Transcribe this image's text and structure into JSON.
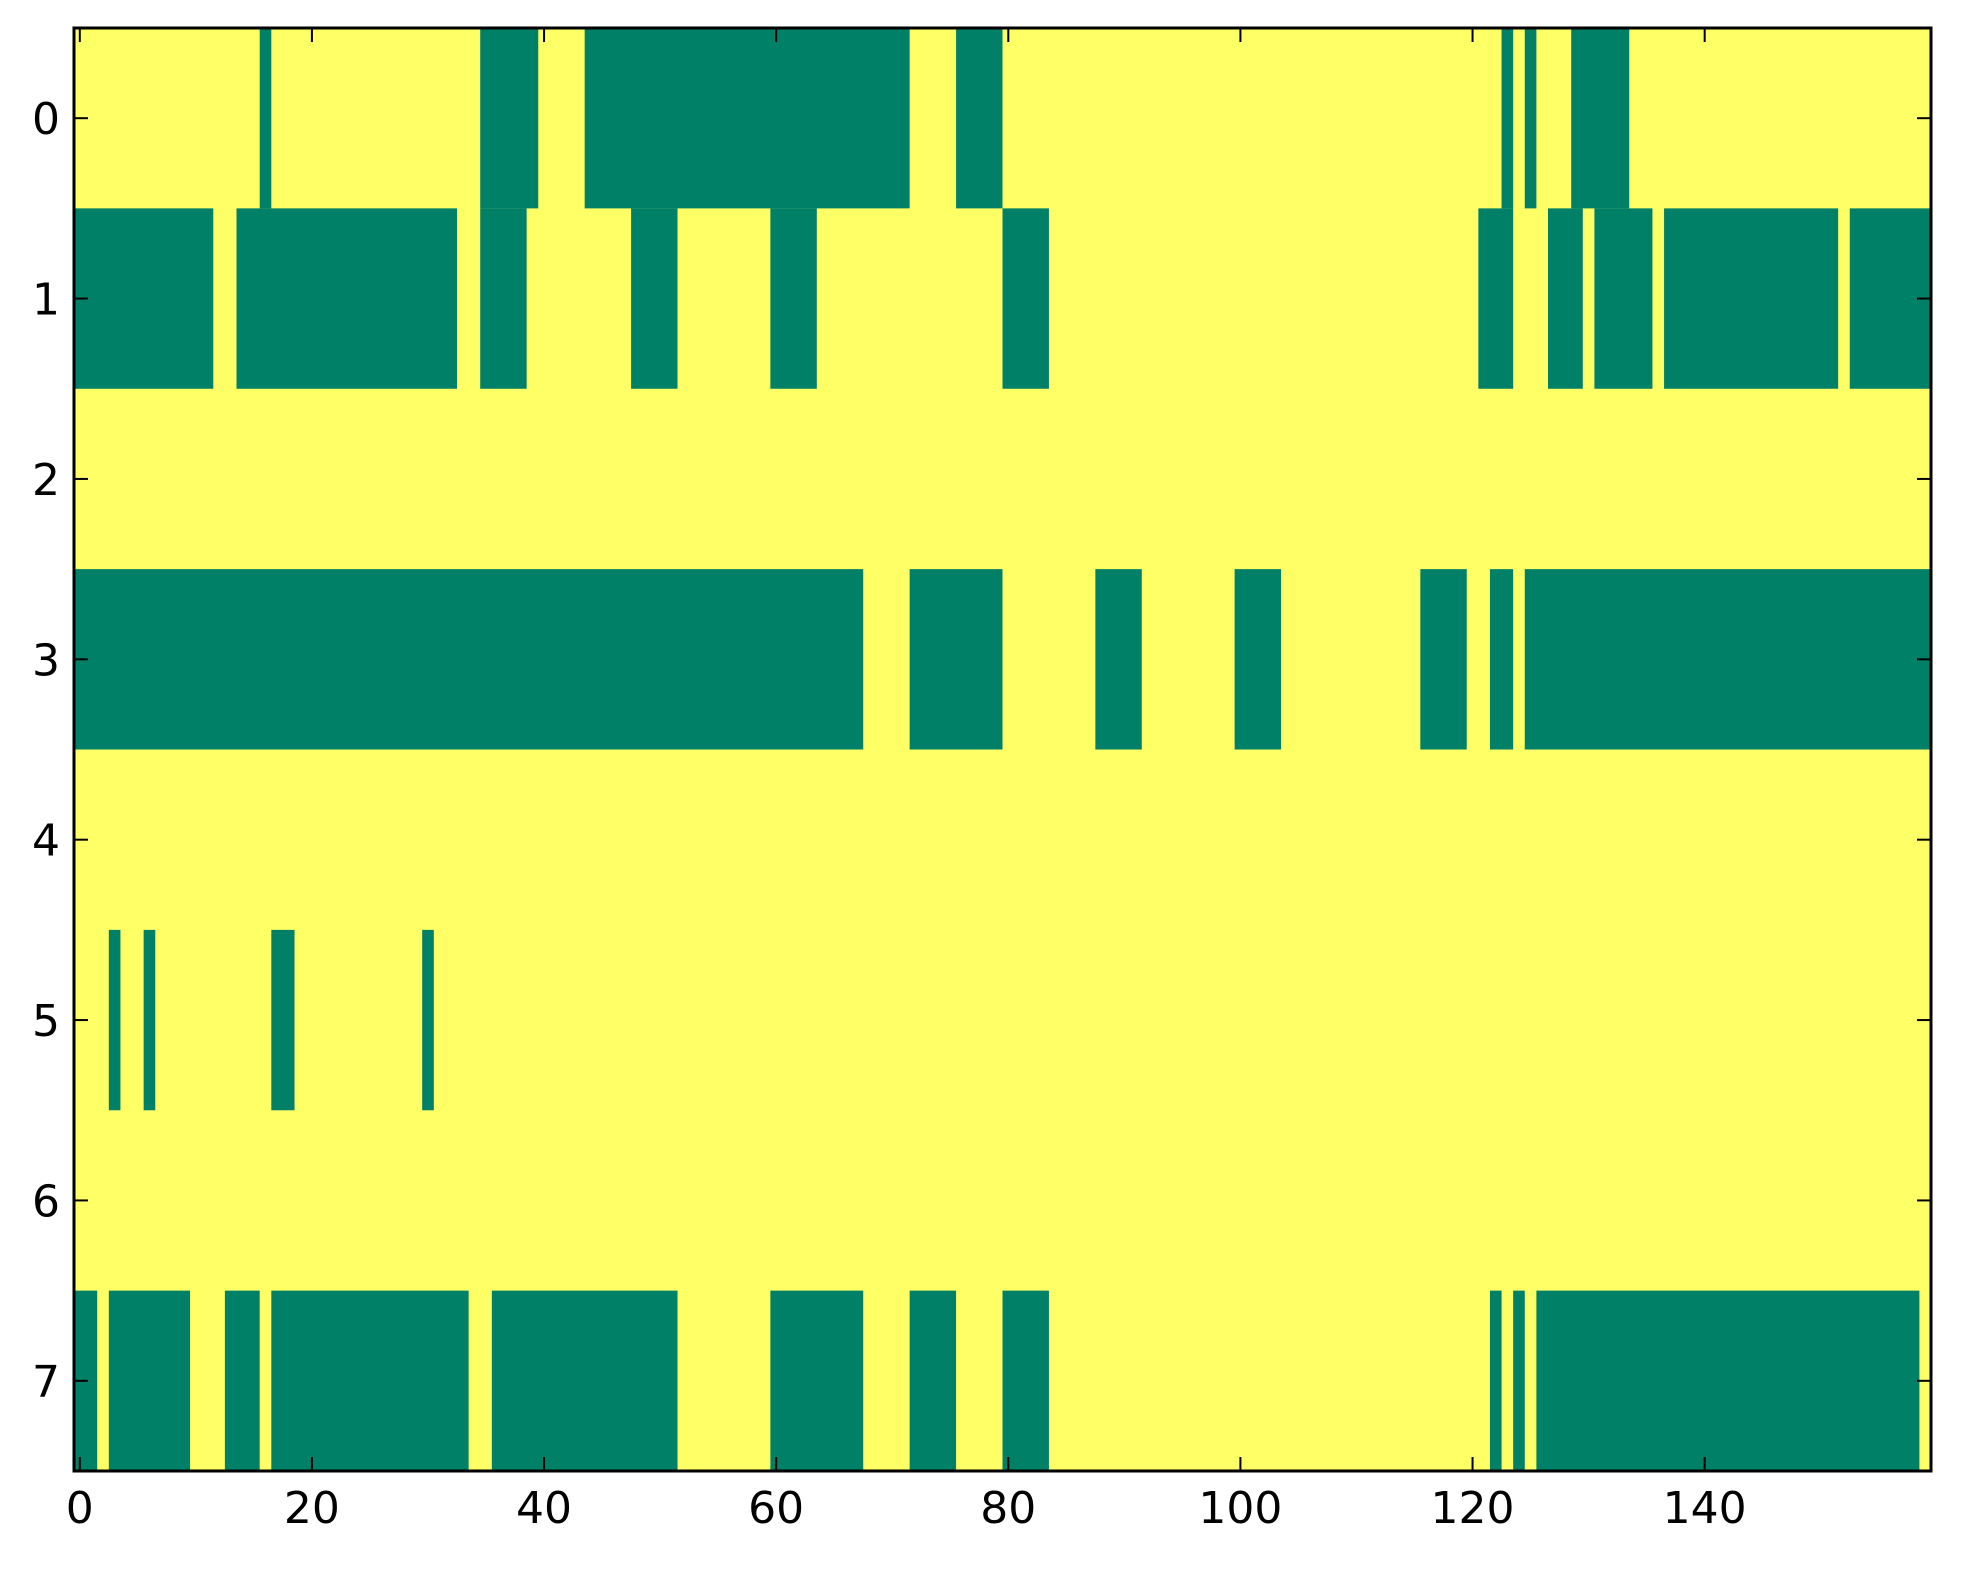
{
  "chart_data": {
    "type": "heatmap",
    "title": "",
    "xlabel": "",
    "ylabel": "",
    "n_columns": 160,
    "xlim": [
      -0.5,
      159.5
    ],
    "ylim": [
      7.5,
      -0.5
    ],
    "x_ticks": [
      0,
      20,
      40,
      60,
      80,
      100,
      120,
      140
    ],
    "x_tick_labels": [
      "0",
      "20",
      "40",
      "60",
      "80",
      "100",
      "120",
      "140"
    ],
    "y_ticks": [
      0,
      1,
      2,
      3,
      4,
      5,
      6,
      7
    ],
    "y_tick_labels": [
      "0",
      "1",
      "2",
      "3",
      "4",
      "5",
      "6",
      "7"
    ],
    "colors": {
      "on": "#008066",
      "off": "#ffff66",
      "axis": "#000000"
    },
    "grid": false,
    "legend": "none",
    "rows": [
      {
        "row": 0,
        "green_runs": [
          [
            16,
            16
          ],
          [
            35,
            39
          ],
          [
            44,
            71
          ],
          [
            76,
            79
          ],
          [
            123,
            123
          ],
          [
            125,
            125
          ],
          [
            129,
            133
          ]
        ]
      },
      {
        "row": 1,
        "green_runs": [
          [
            0,
            11
          ],
          [
            14,
            32
          ],
          [
            35,
            38
          ],
          [
            48,
            51
          ],
          [
            60,
            63
          ],
          [
            80,
            83
          ],
          [
            121,
            123
          ],
          [
            127,
            129
          ],
          [
            131,
            135
          ],
          [
            137,
            151
          ],
          [
            153,
            159
          ]
        ]
      },
      {
        "row": 2,
        "green_runs": []
      },
      {
        "row": 3,
        "green_runs": [
          [
            0,
            67
          ],
          [
            72,
            79
          ],
          [
            88,
            91
          ],
          [
            100,
            103
          ],
          [
            116,
            119
          ],
          [
            122,
            123
          ],
          [
            125,
            159
          ]
        ]
      },
      {
        "row": 4,
        "green_runs": []
      },
      {
        "row": 5,
        "green_runs": [
          [
            3,
            3
          ],
          [
            6,
            6
          ],
          [
            17,
            18
          ],
          [
            30,
            30
          ]
        ]
      },
      {
        "row": 6,
        "green_runs": []
      },
      {
        "row": 7,
        "green_runs": [
          [
            0,
            1
          ],
          [
            3,
            9
          ],
          [
            13,
            15
          ],
          [
            17,
            33
          ],
          [
            36,
            51
          ],
          [
            60,
            67
          ],
          [
            72,
            75
          ],
          [
            80,
            83
          ],
          [
            122,
            122
          ],
          [
            124,
            124
          ],
          [
            126,
            158
          ]
        ]
      }
    ]
  }
}
